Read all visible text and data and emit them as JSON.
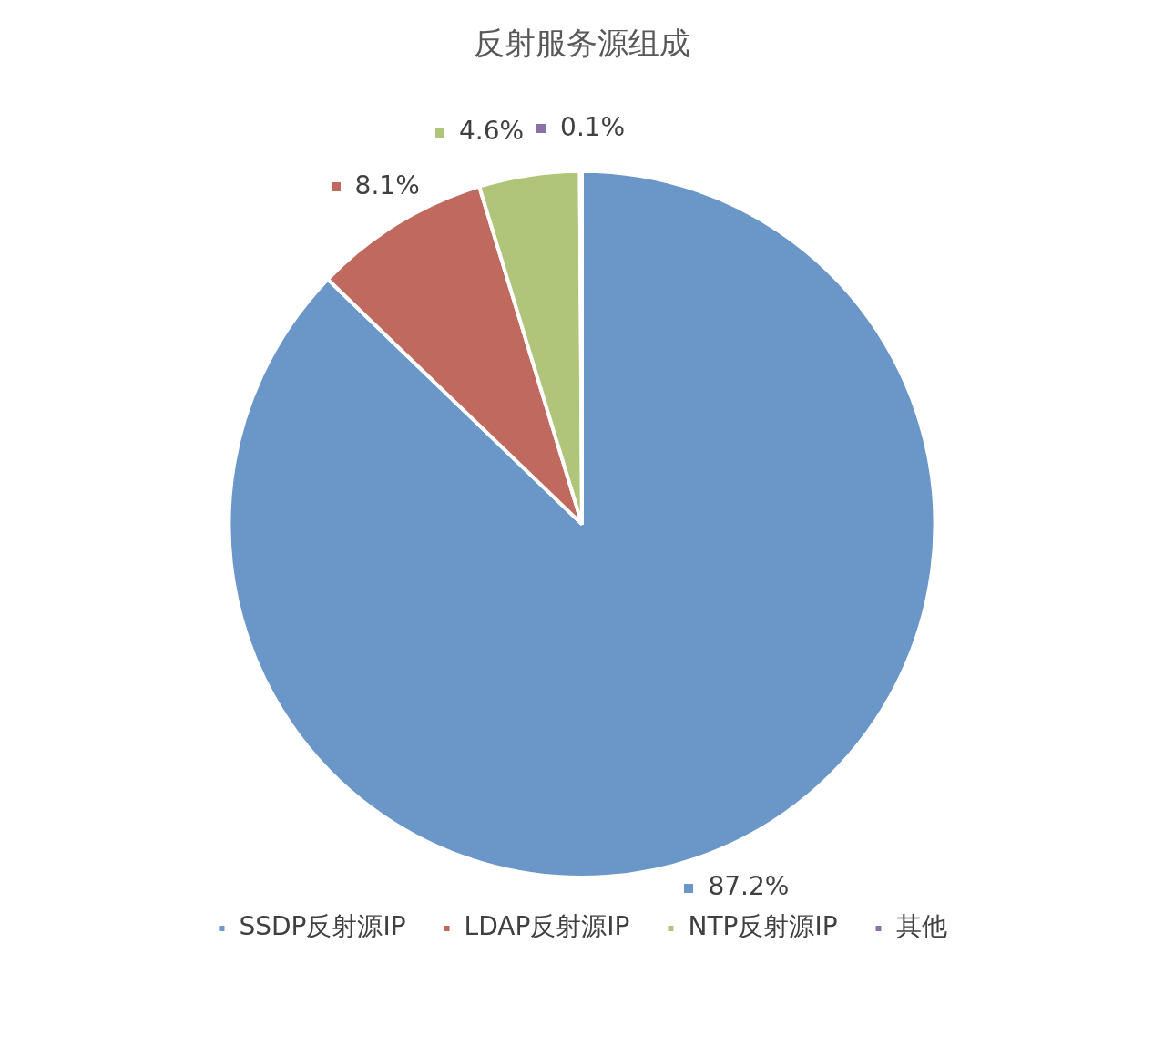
{
  "chart_data": {
    "type": "pie",
    "title": "反射服务源组成",
    "categories": [
      "SSDP反射源IP",
      "LDAP反射源IP",
      "NTP反射源IP",
      "其他"
    ],
    "values": [
      87.2,
      8.1,
      4.6,
      0.1
    ],
    "colors": [
      "#6a96c8",
      "#c0695f",
      "#b0c47a",
      "#8a72a8"
    ],
    "value_labels": [
      "87.2%",
      "8.1%",
      "4.6%",
      "0.1%"
    ],
    "legend": "bottom"
  }
}
